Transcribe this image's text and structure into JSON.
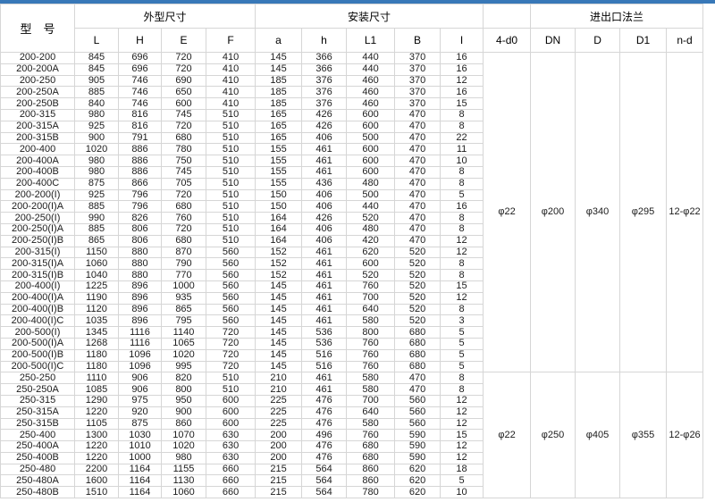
{
  "page": {
    "accent_color": "#3878b8",
    "grid_color": "#d6d6d6",
    "text_color": "#1c1c1c"
  },
  "table": {
    "header": {
      "model_label": "型　号",
      "groups": [
        {
          "label": "外型尺寸",
          "cols": [
            "L",
            "H",
            "E",
            "F"
          ]
        },
        {
          "label": "安装尺寸",
          "cols": [
            "a",
            "h",
            "L1",
            "B",
            "I"
          ]
        },
        {
          "label": "",
          "cols": [
            "4-d0"
          ]
        },
        {
          "label": "进出口法兰",
          "cols": [
            "DN",
            "D",
            "D1",
            "n-d"
          ]
        }
      ]
    },
    "groups": [
      {
        "flange": {
          "d0": "φ22",
          "DN": "φ200",
          "D": "φ340",
          "D1": "φ295",
          "nd": "12-φ22"
        },
        "rows": [
          [
            "200-200",
            845,
            696,
            720,
            410,
            145,
            366,
            440,
            370,
            16
          ],
          [
            "200-200A",
            845,
            696,
            720,
            410,
            145,
            366,
            440,
            370,
            16
          ],
          [
            "200-250",
            905,
            746,
            690,
            410,
            185,
            376,
            460,
            370,
            12
          ],
          [
            "200-250A",
            885,
            746,
            650,
            410,
            185,
            376,
            460,
            370,
            16
          ],
          [
            "200-250B",
            840,
            746,
            600,
            410,
            185,
            376,
            460,
            370,
            15
          ],
          [
            "200-315",
            980,
            816,
            745,
            510,
            165,
            426,
            600,
            470,
            8
          ],
          [
            "200-315A",
            925,
            816,
            720,
            510,
            165,
            426,
            600,
            470,
            8
          ],
          [
            "200-315B",
            900,
            791,
            680,
            510,
            165,
            406,
            500,
            470,
            22
          ],
          [
            "200-400",
            1020,
            886,
            780,
            510,
            155,
            461,
            600,
            470,
            11
          ],
          [
            "200-400A",
            980,
            886,
            750,
            510,
            155,
            461,
            600,
            470,
            10
          ],
          [
            "200-400B",
            980,
            886,
            745,
            510,
            155,
            461,
            600,
            470,
            8
          ],
          [
            "200-400C",
            875,
            866,
            705,
            510,
            155,
            436,
            480,
            470,
            8
          ],
          [
            "200-200(I)",
            925,
            796,
            720,
            510,
            150,
            406,
            500,
            470,
            5
          ],
          [
            "200-200(I)A",
            885,
            796,
            680,
            510,
            150,
            406,
            440,
            470,
            16
          ],
          [
            "200-250(I)",
            990,
            826,
            760,
            510,
            164,
            426,
            520,
            470,
            8
          ],
          [
            "200-250(I)A",
            885,
            806,
            720,
            510,
            164,
            406,
            480,
            470,
            8
          ],
          [
            "200-250(I)B",
            865,
            806,
            680,
            510,
            164,
            406,
            420,
            470,
            12
          ],
          [
            "200-315(I)",
            1150,
            880,
            870,
            560,
            152,
            461,
            620,
            520,
            12
          ],
          [
            "200-315(I)A",
            1060,
            880,
            790,
            560,
            152,
            461,
            600,
            520,
            8
          ],
          [
            "200-315(I)B",
            1040,
            880,
            770,
            560,
            152,
            461,
            520,
            520,
            8
          ],
          [
            "200-400(I)",
            1225,
            896,
            1000,
            560,
            145,
            461,
            760,
            520,
            15
          ],
          [
            "200-400(I)A",
            1190,
            896,
            935,
            560,
            145,
            461,
            700,
            520,
            12
          ],
          [
            "200-400(I)B",
            1120,
            896,
            865,
            560,
            145,
            461,
            640,
            520,
            8
          ],
          [
            "200-400(I)C",
            1035,
            896,
            795,
            560,
            145,
            461,
            580,
            520,
            3
          ],
          [
            "200-500(I)",
            1345,
            1116,
            1140,
            720,
            145,
            536,
            800,
            680,
            5
          ],
          [
            "200-500(I)A",
            1268,
            1116,
            1065,
            720,
            145,
            536,
            760,
            680,
            5
          ],
          [
            "200-500(I)B",
            1180,
            1096,
            1020,
            720,
            145,
            516,
            760,
            680,
            5
          ],
          [
            "200-500(I)C",
            1180,
            1096,
            995,
            720,
            145,
            516,
            760,
            680,
            5
          ]
        ]
      },
      {
        "flange": {
          "d0": "φ22",
          "DN": "φ250",
          "D": "φ405",
          "D1": "φ355",
          "nd": "12-φ26"
        },
        "rows": [
          [
            "250-250",
            1110,
            906,
            820,
            510,
            210,
            461,
            580,
            470,
            8
          ],
          [
            "250-250A",
            1085,
            906,
            800,
            510,
            210,
            461,
            580,
            470,
            8
          ],
          [
            "250-315",
            1290,
            975,
            950,
            600,
            225,
            476,
            700,
            560,
            12
          ],
          [
            "250-315A",
            1220,
            920,
            900,
            600,
            225,
            476,
            640,
            560,
            12
          ],
          [
            "250-315B",
            1105,
            875,
            860,
            600,
            225,
            476,
            580,
            560,
            12
          ],
          [
            "250-400",
            1300,
            1030,
            1070,
            630,
            200,
            496,
            760,
            590,
            15
          ],
          [
            "250-400A",
            1220,
            1010,
            1020,
            630,
            200,
            476,
            680,
            590,
            12
          ],
          [
            "250-400B",
            1220,
            1000,
            980,
            630,
            200,
            476,
            680,
            590,
            12
          ],
          [
            "250-480",
            2200,
            1164,
            1155,
            660,
            215,
            564,
            860,
            620,
            18
          ],
          [
            "250-480A",
            1600,
            1164,
            1130,
            660,
            215,
            564,
            860,
            620,
            5
          ],
          [
            "250-480B",
            1510,
            1164,
            1060,
            660,
            215,
            564,
            780,
            620,
            10
          ]
        ]
      }
    ]
  }
}
